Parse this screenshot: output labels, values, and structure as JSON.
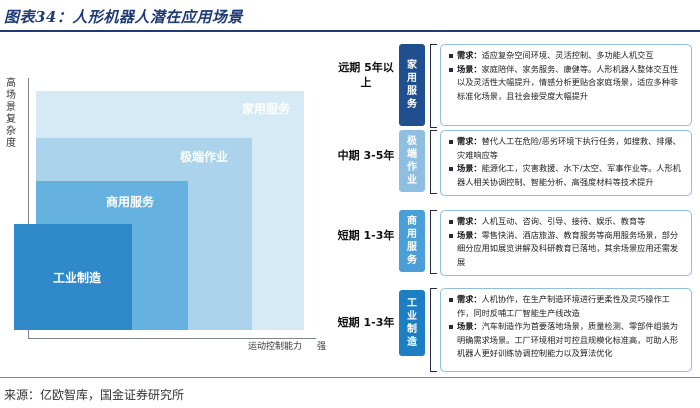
{
  "title": "图表34：人形机器人潜在应用场景",
  "source": "来源：亿欧智库，国金证券研究所",
  "diagram": {
    "y_axis_title": "高 场景复杂度",
    "x_axis_title": "运动控制能力",
    "x_axis_end": "强",
    "blocks": [
      {
        "label": "家用服务",
        "color": "#d6eaf5"
      },
      {
        "label": "极端作业",
        "color": "#acd3ec"
      },
      {
        "label": "商用服务",
        "color": "#65b1df"
      },
      {
        "label": "工业制造",
        "color": "#2f89c8"
      }
    ]
  },
  "rows": [
    {
      "period": "远期 5年以上",
      "tag": "家用服务",
      "tag_color": "#1f4f8f",
      "need_label": "需求：",
      "need": "适应复杂空间环境、灵活控制、多功能人机交互",
      "scene_label": "场景：",
      "scene": "家庭陪伴、家务服务、康健等。人形机器人整体交互性以及灵活性大幅提升，情感分析更贴合家庭场景，适应多种非标准化场景，且社会接受度大幅提升"
    },
    {
      "period": "中期 3-5年",
      "tag": "极端作业",
      "tag_color": "#8fbfe0",
      "need_label": "需求：",
      "need": "替代人工在危险/恶劣环境下执行任务，如搜救、排爆、灾难响应等",
      "scene_label": "场景：",
      "scene": "能源化工，灾害救援、水下/太空、军事作业等。人形机器人相关协调控制、智能分析、高强度材料等技术提升"
    },
    {
      "period": "短期 1-3年",
      "tag": "商用服务",
      "tag_color": "#4a9fd8",
      "need_label": "需求：",
      "need": "人机互动、咨询、引导、接待、娱乐、教育等",
      "scene_label": "场景：",
      "scene": "零售快消、酒店旅游、教育服务等商用服务场景，部分细分应用如展览讲解及科研教育已落地，其余场景应用还需发展"
    },
    {
      "period": "短期 1-3年",
      "tag": "工业制造",
      "tag_color": "#1c7fc4",
      "need_label": "需求：",
      "need": "人机协作，在生产制造环境进行更柔性及灵巧操作工作，同时反哺工厂智能生产线改造",
      "scene_label": "场景：",
      "scene": "汽车制造作为首要落地场景，质量检测、零部件组装为明确需求场景。工厂环境相对可控且规模化标准高，可助人形机器人更好训练协调控制能力以及算法优化"
    }
  ]
}
